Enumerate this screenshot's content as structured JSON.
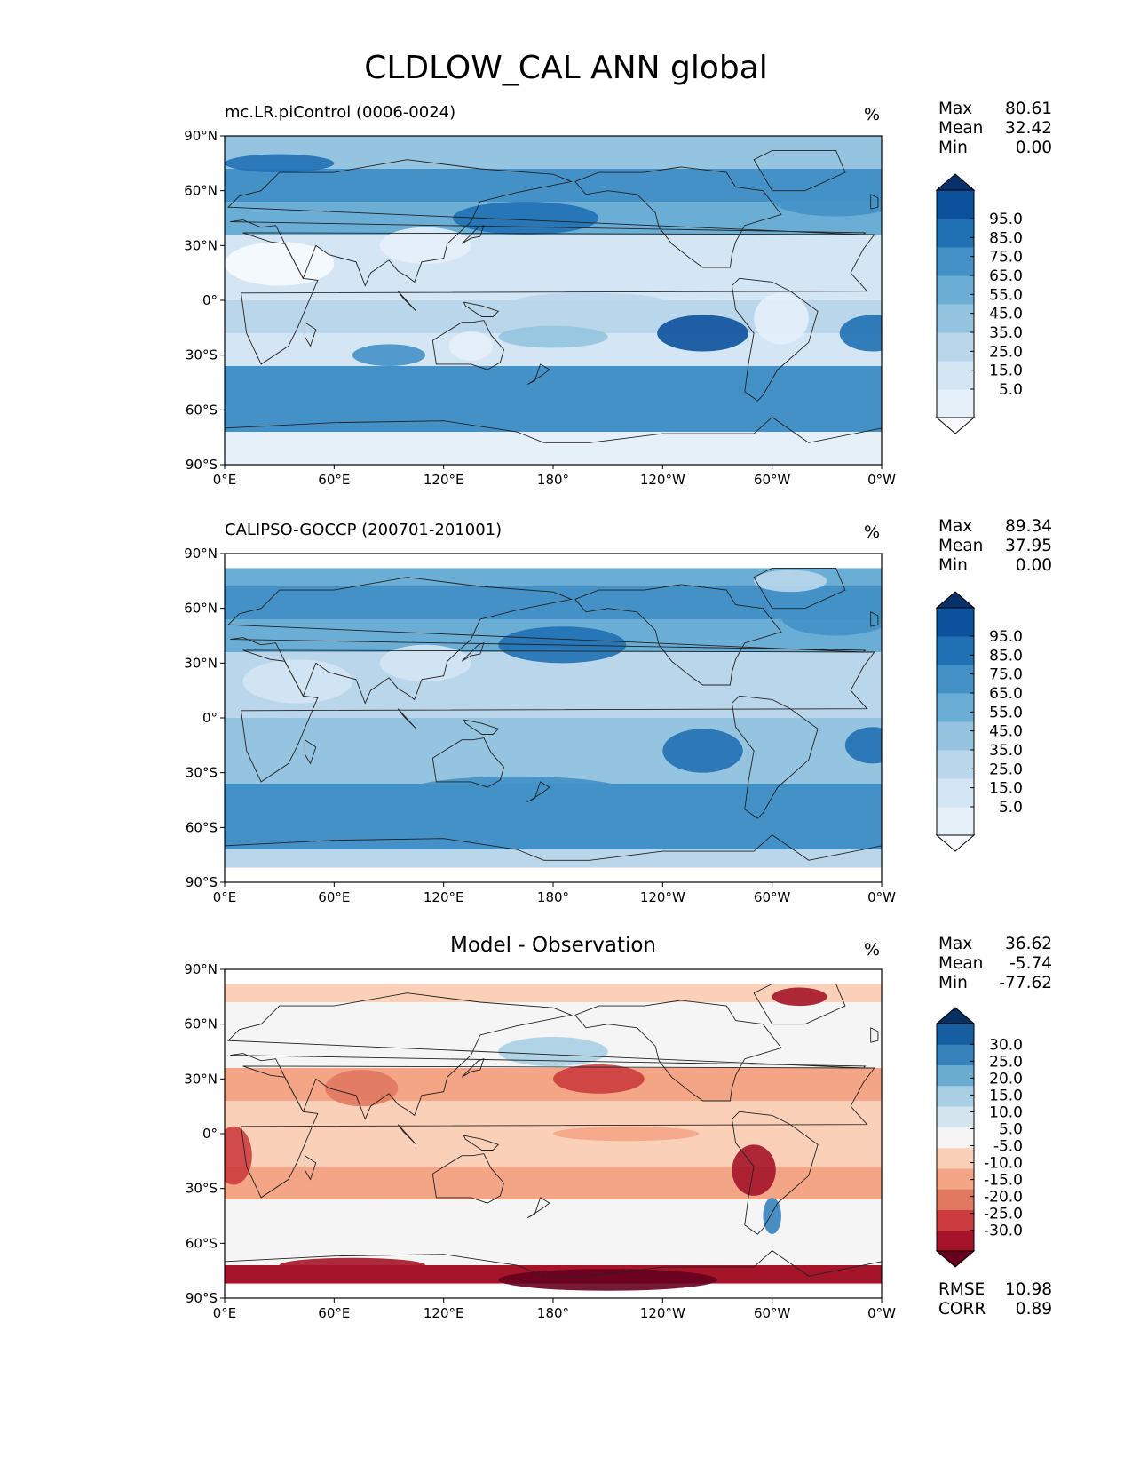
{
  "title": "CLDLOW_CAL ANN global",
  "units_symbol": "%",
  "lat_ticks": [
    "90°N",
    "60°N",
    "30°N",
    "0°",
    "30°S",
    "60°S",
    "90°S"
  ],
  "lon_ticks": [
    "0°E",
    "60°E",
    "120°E",
    "180°",
    "120°W",
    "60°W",
    "0°W"
  ],
  "panels": [
    {
      "title": "mc.LR.piControl (0006-0024)",
      "title_style": "left",
      "stats": [
        {
          "label": "Max",
          "value": "80.61"
        },
        {
          "label": "Mean",
          "value": "32.42"
        },
        {
          "label": "Min",
          "value": "0.00"
        }
      ],
      "colorbar": {
        "labels": [
          "95.0",
          "85.0",
          "75.0",
          "65.0",
          "55.0",
          "45.0",
          "35.0",
          "25.0",
          "15.0",
          "5.0"
        ],
        "colors": [
          "#f7fbff",
          "#e6f0f9",
          "#d4e5f4",
          "#bad6eb",
          "#94c4df",
          "#6aaed6",
          "#4391c6",
          "#2070b4",
          "#0c519c",
          "#08306b"
        ]
      }
    },
    {
      "title": "CALIPSO-GOCCP (200701-201001)",
      "title_style": "left",
      "stats": [
        {
          "label": "Max",
          "value": "89.34"
        },
        {
          "label": "Mean",
          "value": "37.95"
        },
        {
          "label": "Min",
          "value": "0.00"
        }
      ],
      "colorbar": {
        "labels": [
          "95.0",
          "85.0",
          "75.0",
          "65.0",
          "55.0",
          "45.0",
          "35.0",
          "25.0",
          "15.0",
          "5.0"
        ],
        "colors": [
          "#f7fbff",
          "#e6f0f9",
          "#d4e5f4",
          "#bad6eb",
          "#94c4df",
          "#6aaed6",
          "#4391c6",
          "#2070b4",
          "#0c519c",
          "#08306b"
        ]
      }
    },
    {
      "title": "Model - Observation",
      "title_style": "center",
      "stats": [
        {
          "label": "Max",
          "value": "36.62"
        },
        {
          "label": "Mean",
          "value": "-5.74"
        },
        {
          "label": "Min",
          "value": "-77.62"
        }
      ],
      "colorbar": {
        "labels": [
          "30.0",
          "25.0",
          "20.0",
          "15.0",
          "10.0",
          "5.0",
          "-5.0",
          "-10.0",
          "-15.0",
          "-20.0",
          "-25.0",
          "-30.0"
        ],
        "colors": [
          "#67001f",
          "#a51429",
          "#cc3c3e",
          "#e17860",
          "#f3a586",
          "#fbd0b9",
          "#f5f5f5",
          "#d4e5f0",
          "#a8cfe4",
          "#6aaccf",
          "#3782bb",
          "#175ea1",
          "#053061"
        ]
      },
      "extra_stats": [
        {
          "label": "RMSE",
          "value": "10.98"
        },
        {
          "label": "CORR",
          "value": "0.89"
        }
      ]
    }
  ],
  "chart_data": [
    {
      "type": "heatmap",
      "title": "mc.LR.piControl (0006-0024)",
      "variable": "CLDLOW_CAL",
      "season": "ANN",
      "units": "%",
      "xlim": [
        0,
        360
      ],
      "ylim": [
        -90,
        90
      ],
      "xticks": [
        "0°E",
        "60°E",
        "120°E",
        "180°",
        "120°W",
        "60°W",
        "0°W"
      ],
      "yticks": [
        "90°N",
        "60°N",
        "30°N",
        "0°",
        "30°S",
        "60°S",
        "90°S"
      ],
      "levels": [
        5,
        15,
        25,
        35,
        45,
        55,
        65,
        75,
        85,
        95
      ],
      "max": 80.61,
      "mean": 32.42,
      "min": 0.0,
      "lat_row_values": [
        40,
        55,
        50,
        22,
        18,
        30,
        22,
        60,
        62,
        10
      ]
    },
    {
      "type": "heatmap",
      "title": "CALIPSO-GOCCP (200701-201001)",
      "units": "%",
      "xlim": [
        0,
        360
      ],
      "ylim": [
        -90,
        90
      ],
      "levels": [
        5,
        15,
        25,
        35,
        45,
        55,
        65,
        75,
        85,
        95
      ],
      "max": 89.34,
      "mean": 37.95,
      "min": 0.0,
      "lat_row_values": [
        52,
        58,
        48,
        30,
        28,
        36,
        40,
        62,
        60,
        30
      ]
    },
    {
      "type": "heatmap",
      "title": "Model - Observation",
      "units": "%",
      "xlim": [
        0,
        360
      ],
      "ylim": [
        -90,
        90
      ],
      "levels": [
        -30,
        -25,
        -20,
        -15,
        -10,
        -5,
        5,
        10,
        15,
        20,
        25,
        30
      ],
      "max": 36.62,
      "mean": -5.74,
      "min": -77.62,
      "rmse": 10.98,
      "corr": 0.89,
      "lat_row_values": [
        -10,
        -4,
        4,
        -12,
        -8,
        -6,
        -14,
        -2,
        2,
        -30
      ]
    }
  ]
}
